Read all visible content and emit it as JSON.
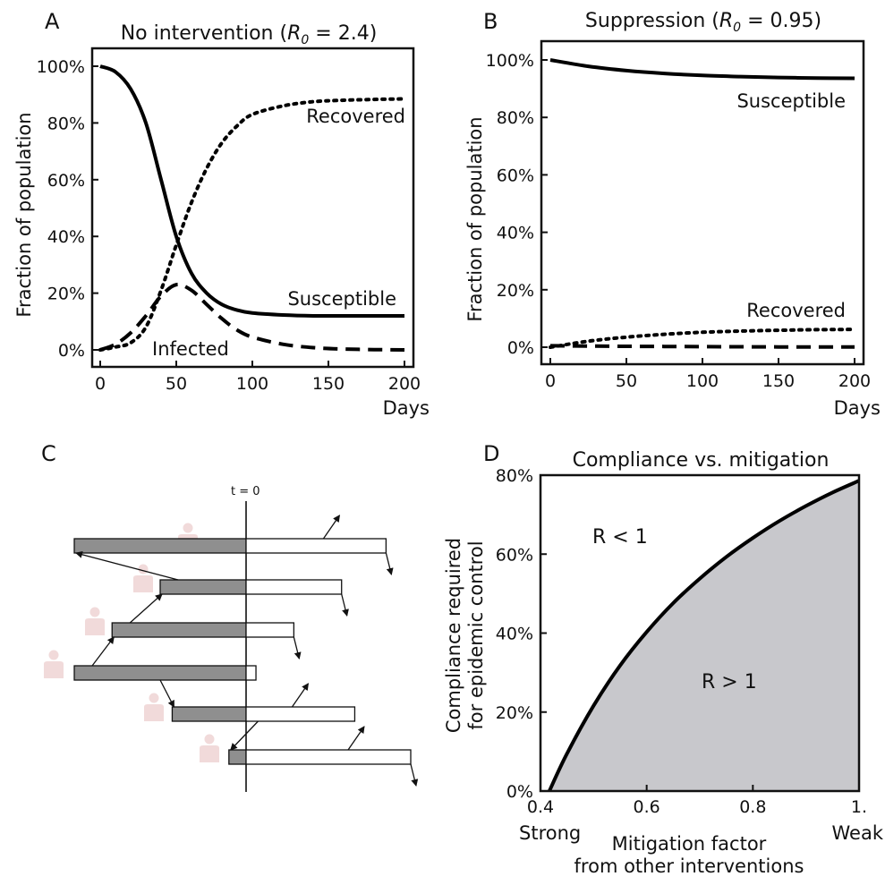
{
  "panels": {
    "A": {
      "letter": "A",
      "title_main": "No intervention (",
      "title_var": "R",
      "title_sub": "0",
      "title_rest": " = 2.4)"
    },
    "B": {
      "letter": "B",
      "title_main": "Suppression (",
      "title_var": "R",
      "title_sub": "0",
      "title_rest": " = 0.95)"
    },
    "C": {
      "letter": "C",
      "t0_label": "t = 0"
    },
    "D": {
      "letter": "D",
      "title": "Compliance vs. mitigation",
      "region_upper": "R < 1",
      "region_lower": "R > 1"
    }
  },
  "chart_data": [
    {
      "panel": "A",
      "type": "line",
      "xlabel": "Days",
      "ylabel": "Fraction of population",
      "xlim": [
        0,
        200
      ],
      "ylim": [
        0,
        100
      ],
      "x_ticks": [
        "0",
        "50",
        "100",
        "150",
        "200"
      ],
      "y_ticks": [
        "0%",
        "20%",
        "40%",
        "60%",
        "80%",
        "100%"
      ],
      "x": [
        0,
        10,
        20,
        30,
        40,
        50,
        60,
        70,
        80,
        90,
        100,
        120,
        140,
        160,
        180,
        200
      ],
      "series": [
        {
          "name": "Susceptible",
          "style": "solid",
          "values": [
            100,
            98,
            92,
            80,
            60,
            40,
            27,
            20,
            16,
            14,
            13,
            12.3,
            12,
            12,
            12,
            12
          ]
        },
        {
          "name": "Infected",
          "style": "dashed",
          "values": [
            0,
            2,
            6,
            12,
            19,
            23,
            21,
            16,
            11,
            7,
            4.5,
            2,
            0.8,
            0.3,
            0.1,
            0
          ]
        },
        {
          "name": "Recovered",
          "style": "dotted",
          "values": [
            0,
            1,
            2.5,
            8,
            21,
            37,
            52,
            64,
            73,
            79,
            83,
            86,
            87.5,
            88,
            88.3,
            88.5
          ]
        }
      ]
    },
    {
      "panel": "B",
      "type": "line",
      "xlabel": "Days",
      "ylabel": "Fraction of population",
      "xlim": [
        0,
        200
      ],
      "ylim": [
        0,
        100
      ],
      "x_ticks": [
        "0",
        "50",
        "100",
        "150",
        "200"
      ],
      "y_ticks": [
        "0%",
        "20%",
        "40%",
        "60%",
        "80%",
        "100%"
      ],
      "x": [
        0,
        25,
        50,
        75,
        100,
        125,
        150,
        175,
        200
      ],
      "series": [
        {
          "name": "Susceptible",
          "style": "solid",
          "values": [
            100,
            97.8,
            96.3,
            95.3,
            94.6,
            94.2,
            93.9,
            93.7,
            93.6
          ]
        },
        {
          "name": "Infected",
          "style": "dashed",
          "values": [
            0.5,
            0.4,
            0.3,
            0.25,
            0.2,
            0.15,
            0.1,
            0.08,
            0.05
          ]
        },
        {
          "name": "Recovered",
          "style": "dotted",
          "values": [
            0,
            2.1,
            3.5,
            4.5,
            5.2,
            5.6,
            5.9,
            6.1,
            6.2
          ]
        }
      ]
    },
    {
      "panel": "D",
      "type": "area",
      "title": "Compliance vs. mitigation",
      "xlabel_lines": [
        "Mitigation factor",
        "from other interventions"
      ],
      "ylabel_lines": [
        "Compliance required",
        "for epidemic control"
      ],
      "xlim": [
        0.4,
        1.0
      ],
      "ylim": [
        0,
        80
      ],
      "x_ticks": [
        "0.4",
        "0.6",
        "0.8",
        "1."
      ],
      "x_end_labels": {
        "left": "Strong",
        "right": "Weak"
      },
      "y_ticks": [
        "0%",
        "20%",
        "40%",
        "60%",
        "80%"
      ],
      "x": [
        0.4167,
        0.45,
        0.5,
        0.55,
        0.6,
        0.65,
        0.7,
        0.75,
        0.8,
        0.85,
        0.9,
        0.95,
        1.0
      ],
      "values": [
        0,
        9.5,
        21.6,
        31.8,
        40.3,
        47.6,
        53.8,
        59.3,
        64.1,
        68.4,
        72.2,
        75.6,
        78.6
      ]
    }
  ],
  "timeline": {
    "rows": [
      {
        "before": 1.0,
        "after": 0.85,
        "arrows_out": [
          "up",
          "down"
        ]
      },
      {
        "before": 0.5,
        "after": 0.58,
        "arrows_out": [
          "down"
        ]
      },
      {
        "before": 0.78,
        "after": 0.29,
        "arrows_out": [
          "down"
        ]
      },
      {
        "before": 1.0,
        "after": 0.06,
        "arrows_out": []
      },
      {
        "before": 0.43,
        "after": 0.66,
        "arrows_out": [
          "up"
        ]
      },
      {
        "before": 0.1,
        "after": 1.0,
        "arrows_out": [
          "up",
          "down"
        ]
      }
    ]
  }
}
